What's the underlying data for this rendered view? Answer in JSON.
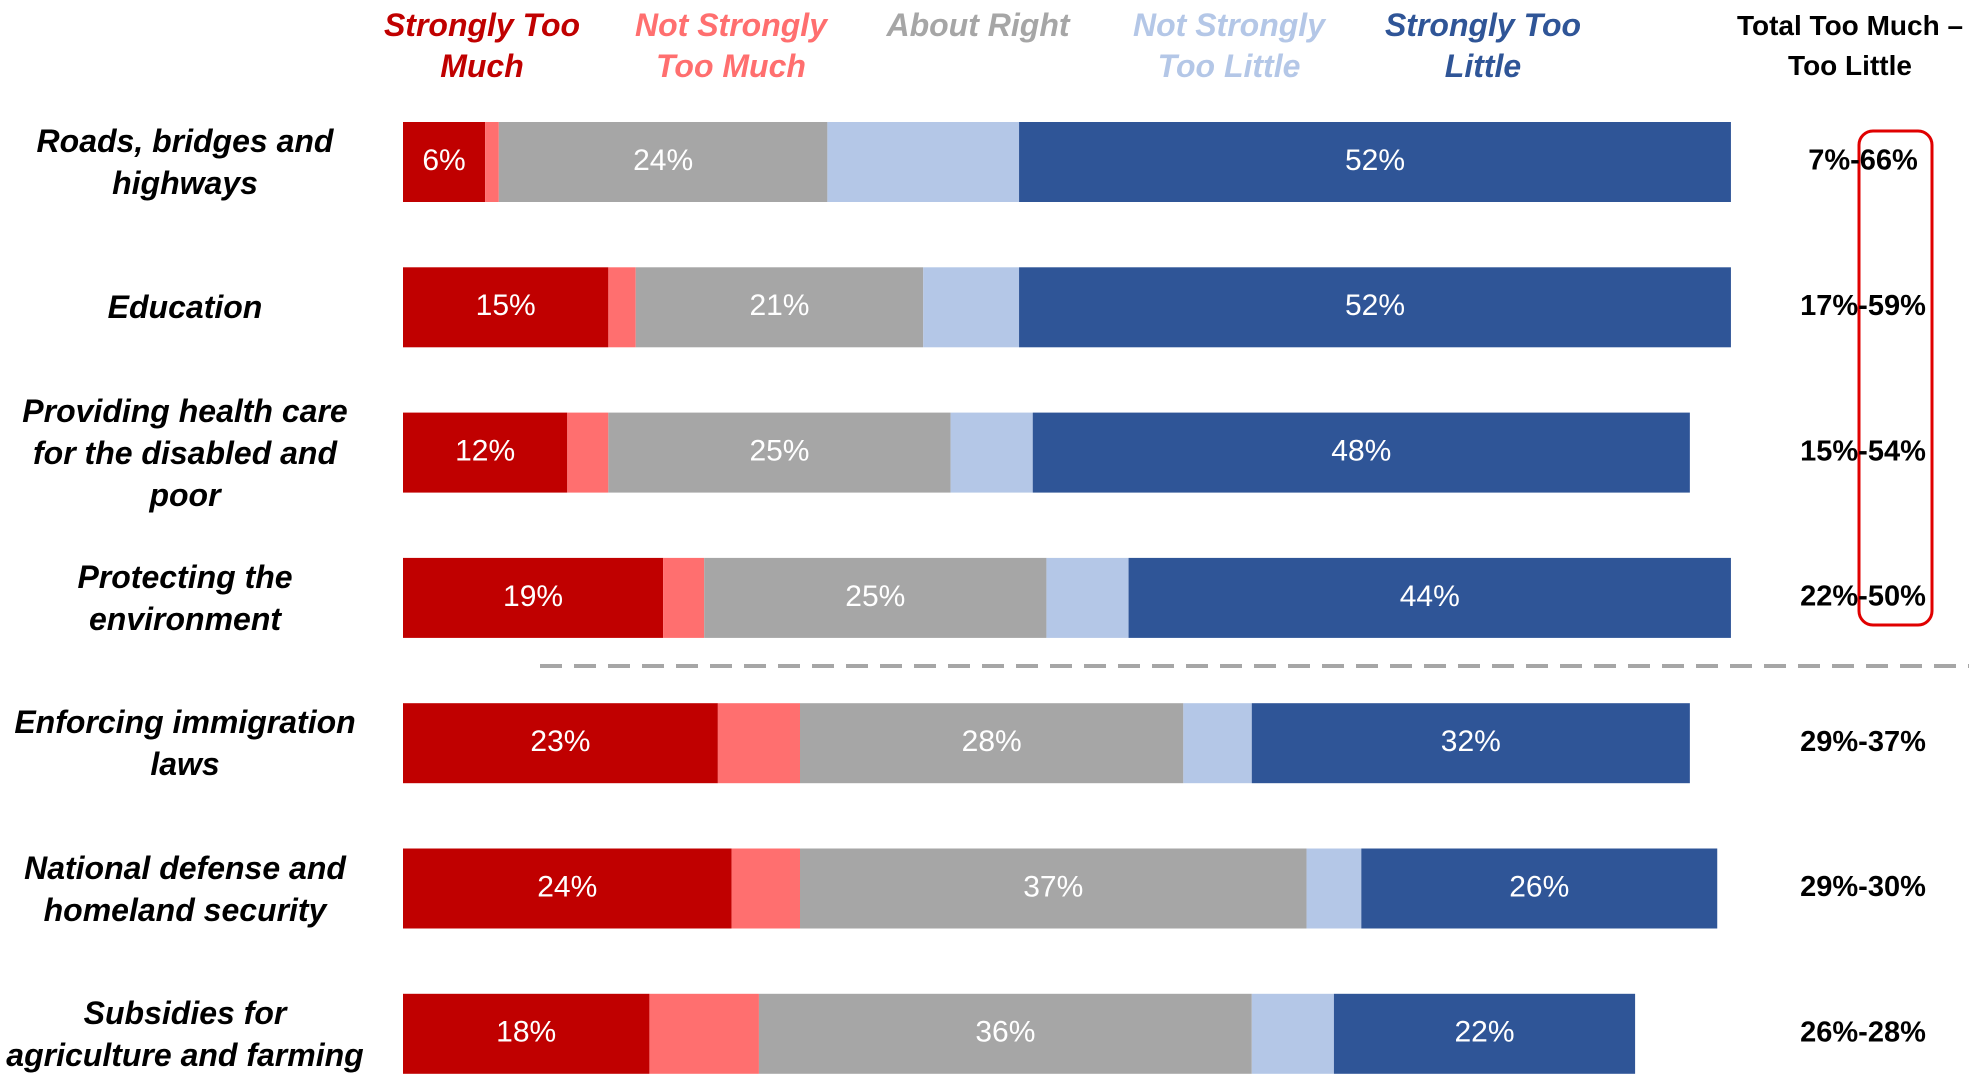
{
  "chart_data": {
    "type": "stacked-bar-horizontal",
    "categories": [
      "Roads, bridges and highways",
      "Education",
      "Providing health care for the disabled and poor",
      "Protecting the environment",
      "Enforcing immigration laws",
      "National defense and homeland security",
      "Subsidies for agriculture and farming"
    ],
    "series": [
      {
        "name": "Strongly Too Much",
        "color": "#c00000",
        "values": [
          6,
          15,
          12,
          19,
          23,
          24,
          18
        ],
        "value_labels": [
          "6%",
          "15%",
          "12%",
          "19%",
          "23%",
          "24%",
          "18%"
        ]
      },
      {
        "name": "Not Strongly Too Much",
        "color": "#ff6f6f",
        "values": [
          1,
          2,
          3,
          3,
          6,
          5,
          8
        ]
      },
      {
        "name": "About Right",
        "color": "#a6a6a6",
        "values": [
          24,
          21,
          25,
          25,
          28,
          37,
          36
        ],
        "value_labels": [
          "24%",
          "21%",
          "25%",
          "25%",
          "28%",
          "37%",
          "36%"
        ]
      },
      {
        "name": "Not Strongly Too Little",
        "color": "#b4c7e7",
        "values": [
          14,
          7,
          6,
          6,
          5,
          4,
          6
        ]
      },
      {
        "name": "Strongly Too Little",
        "color": "#2f5597",
        "values": [
          52,
          52,
          48,
          44,
          32,
          26,
          22
        ],
        "value_labels": [
          "52%",
          "52%",
          "48%",
          "44%",
          "32%",
          "26%",
          "22%"
        ]
      }
    ],
    "totals_title": "Total Too Much – Too Little",
    "totals": [
      "7%-66%",
      "17%-59%",
      "15%-54%",
      "22%-50%",
      "29%-37%",
      "29%-30%",
      "26%-28%"
    ]
  }
}
